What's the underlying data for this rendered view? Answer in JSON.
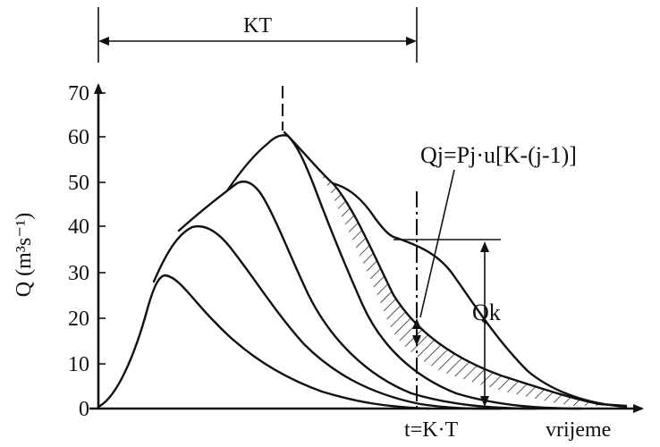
{
  "diagram": {
    "y_axis_label": "Q (m³s⁻¹)",
    "x_axis_label": "vrijeme",
    "y_ticks": [
      "0",
      "10",
      "20",
      "30",
      "40",
      "50",
      "60",
      "70"
    ],
    "span_label": "KT",
    "time_marker_label": "t=K·T",
    "formula_label": "Qj=Pj·u[K-(j-1)]",
    "qk_label": "Qk"
  }
}
